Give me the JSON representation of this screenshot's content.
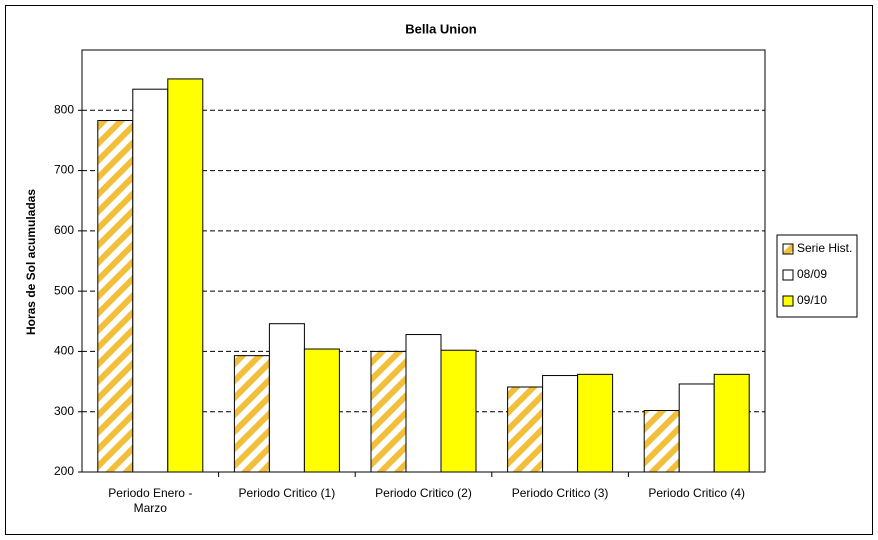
{
  "chart_data": {
    "type": "bar",
    "title": "Bella Union",
    "y_label": "Horas de Sol acumuladas",
    "categories": [
      "Periodo  Enero - Marzo",
      "Periodo Critico (1)",
      "Periodo Critico (2)",
      "Periodo Critico (3)",
      "Periodo Critico (4)"
    ],
    "series": [
      {
        "name": "Serie Hist.",
        "color": "#f2bf3a",
        "pattern": "stripes",
        "values": [
          783,
          393,
          400,
          341,
          302
        ]
      },
      {
        "name": "08/09",
        "color": "#ffffff",
        "values": [
          835,
          446,
          428,
          360,
          346
        ]
      },
      {
        "name": "09/10",
        "color": "#ffff00",
        "values": [
          852,
          404,
          402,
          362,
          362
        ]
      }
    ],
    "ylim": [
      200,
      900
    ],
    "yticks": [
      200,
      300,
      400,
      500,
      600,
      700,
      800
    ],
    "grid": true,
    "legend": "right"
  }
}
